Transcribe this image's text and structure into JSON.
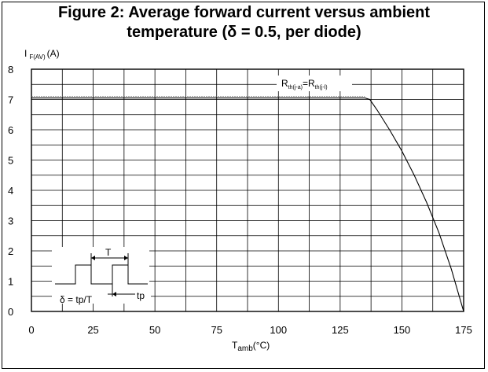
{
  "title_line1": "Figure 2: Average forward current versus ambient",
  "title_line2": "temperature (δ = 0.5, per diode)",
  "chart_data": {
    "type": "line",
    "ylabel": {
      "main": "I",
      "sub": "F(AV)",
      "unit": "(A)"
    },
    "xlabel": {
      "main": "T",
      "sub": "amb",
      "unit": "(°C)"
    },
    "xlim": [
      0,
      175
    ],
    "ylim": [
      0,
      8
    ],
    "xticks": [
      0,
      25,
      50,
      75,
      100,
      125,
      150,
      175
    ],
    "yticks": [
      0,
      1,
      2,
      3,
      4,
      5,
      6,
      7,
      8
    ],
    "grid": true,
    "series": [
      {
        "label_parts": {
          "a": "R",
          "a_sub": "th(j-a)",
          "eq": "=",
          "b": "R",
          "b_sub": "th(j-l)"
        },
        "x": [
          0,
          50,
          100,
          135,
          137,
          140,
          145,
          150,
          155,
          160,
          165,
          170,
          175
        ],
        "y": [
          7.05,
          7.05,
          7.05,
          7.05,
          7.0,
          6.65,
          6.0,
          5.3,
          4.5,
          3.6,
          2.6,
          1.4,
          0
        ]
      }
    ],
    "inset": {
      "period_label": "T",
      "duty_label": "δ = tp/T",
      "pulse_label": "tp"
    }
  }
}
